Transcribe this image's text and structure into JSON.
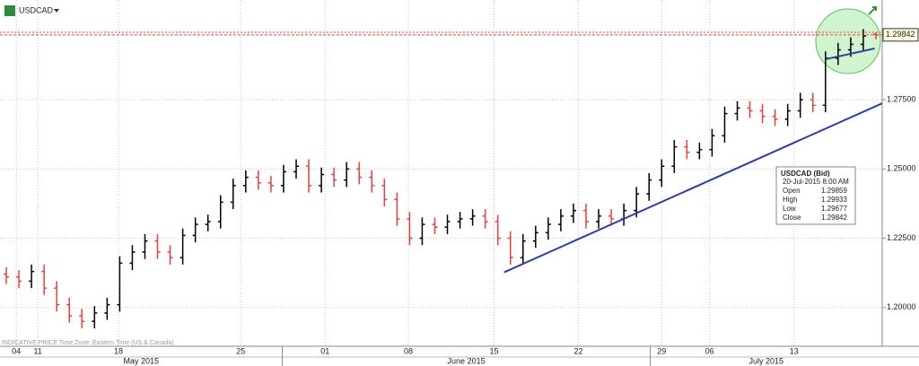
{
  "chart_data": {
    "type": "ohlc",
    "title": "USDCAD",
    "footer": "INDICATIVE PRICE   Time Zone: Eastern Time (US & Canada)",
    "up_color": "#000000",
    "down_color": "#e8413c",
    "trend_color": "#2e3f9e",
    "grid": true,
    "ylim": [
      1.186,
      1.311
    ],
    "yticks": [
      {
        "value": 1.2,
        "label": "1.20000"
      },
      {
        "value": 1.225,
        "label": "1.22500"
      },
      {
        "value": 1.25,
        "label": "1.25000"
      },
      {
        "value": 1.275,
        "label": "1.27500"
      }
    ],
    "xlim": [
      0,
      70
    ],
    "xticks": [
      {
        "value": 1.3,
        "label": "04"
      },
      {
        "value": 3.0,
        "label": "11"
      },
      {
        "value": 9.4,
        "label": "18"
      },
      {
        "value": 19.1,
        "label": "25"
      },
      {
        "value": 25.8,
        "label": "01"
      },
      {
        "value": 32.4,
        "label": "08"
      },
      {
        "value": 39.2,
        "label": "15"
      },
      {
        "value": 45.9,
        "label": "22"
      },
      {
        "value": 52.5,
        "label": "29"
      },
      {
        "value": 56.3,
        "label": "06"
      },
      {
        "value": 63.0,
        "label": "13"
      }
    ],
    "months": [
      {
        "label": "May 2015",
        "start": 0,
        "end": 22.4
      },
      {
        "label": "June 2015",
        "start": 22.4,
        "end": 51.6
      },
      {
        "label": "July 2015",
        "start": 51.6,
        "end": 70
      }
    ],
    "open": [
      1.212,
      1.211,
      1.2095,
      1.213,
      1.207,
      1.201,
      1.197,
      1.195,
      1.198,
      1.201,
      1.216,
      1.22,
      1.224,
      1.22,
      1.218,
      1.226,
      1.23,
      1.231,
      1.238,
      1.244,
      1.247,
      1.245,
      1.244,
      1.249,
      1.251,
      1.244,
      1.248,
      1.246,
      1.25,
      1.247,
      1.244,
      1.239,
      1.232,
      1.225,
      1.23,
      1.229,
      1.231,
      1.232,
      1.233,
      1.231,
      1.225,
      1.218,
      1.224,
      1.227,
      1.23,
      1.233,
      1.235,
      1.231,
      1.233,
      1.232,
      1.235,
      1.241,
      1.246,
      1.251,
      1.258,
      1.256,
      1.257,
      1.262,
      1.27,
      1.272,
      1.271,
      1.269,
      1.268,
      1.271,
      1.275,
      1.273,
      1.29,
      1.293,
      1.295,
      1.29859
    ],
    "high": [
      1.2145,
      1.2135,
      1.2155,
      1.2155,
      1.2095,
      1.2035,
      1.1995,
      1.2005,
      1.2035,
      1.2185,
      1.2225,
      1.2265,
      1.2265,
      1.2225,
      1.2285,
      1.2325,
      1.2335,
      1.2405,
      1.2465,
      1.2495,
      1.2495,
      1.2475,
      1.2515,
      1.2535,
      1.2535,
      1.2505,
      1.2505,
      1.2525,
      1.2525,
      1.2495,
      1.2465,
      1.2415,
      1.2345,
      1.2325,
      1.2325,
      1.2335,
      1.2345,
      1.2355,
      1.2355,
      1.2335,
      1.2275,
      1.2265,
      1.2295,
      1.2325,
      1.2355,
      1.2375,
      1.2375,
      1.2355,
      1.2355,
      1.2375,
      1.2435,
      1.2485,
      1.2535,
      1.2605,
      1.2605,
      1.2595,
      1.2645,
      1.2725,
      1.2745,
      1.2745,
      1.2735,
      1.2715,
      1.2735,
      1.2775,
      1.2775,
      1.2925,
      1.2955,
      1.2975,
      1.3005,
      1.29933
    ],
    "low": [
      1.2085,
      1.207,
      1.207,
      1.2045,
      1.1985,
      1.1945,
      1.1925,
      1.1925,
      1.1955,
      1.1985,
      1.2135,
      1.2175,
      1.2175,
      1.2155,
      1.2155,
      1.2235,
      1.2275,
      1.2285,
      1.2355,
      1.2415,
      1.2425,
      1.2415,
      1.2415,
      1.2465,
      1.2415,
      1.2415,
      1.2435,
      1.2435,
      1.2445,
      1.2415,
      1.2365,
      1.2295,
      1.2225,
      1.2225,
      1.2265,
      1.2265,
      1.2285,
      1.2295,
      1.2285,
      1.2225,
      1.2155,
      1.2155,
      1.2215,
      1.2245,
      1.2275,
      1.2305,
      1.2285,
      1.2285,
      1.2295,
      1.2295,
      1.2325,
      1.2385,
      1.2435,
      1.2485,
      1.2535,
      1.2535,
      1.2545,
      1.2595,
      1.2675,
      1.2685,
      1.2665,
      1.2655,
      1.2655,
      1.2685,
      1.2705,
      1.2705,
      1.2875,
      1.2905,
      1.2925,
      1.29677
    ],
    "close": [
      1.211,
      1.2095,
      1.213,
      1.207,
      1.201,
      1.197,
      1.195,
      1.198,
      1.201,
      1.216,
      1.22,
      1.224,
      1.22,
      1.218,
      1.226,
      1.23,
      1.231,
      1.238,
      1.244,
      1.247,
      1.245,
      1.244,
      1.249,
      1.251,
      1.244,
      1.248,
      1.246,
      1.25,
      1.247,
      1.244,
      1.239,
      1.232,
      1.225,
      1.23,
      1.229,
      1.231,
      1.232,
      1.233,
      1.231,
      1.225,
      1.218,
      1.224,
      1.227,
      1.23,
      1.233,
      1.235,
      1.231,
      1.233,
      1.232,
      1.235,
      1.241,
      1.246,
      1.251,
      1.258,
      1.256,
      1.257,
      1.262,
      1.27,
      1.272,
      1.271,
      1.269,
      1.268,
      1.271,
      1.275,
      1.273,
      1.29,
      1.293,
      1.295,
      1.298,
      1.29842
    ],
    "trendlines": [
      {
        "x": [
          40.0,
          70.0
        ],
        "y": [
          1.2127,
          1.2737
        ]
      },
      {
        "x": [
          65.5,
          69.4
        ],
        "y": [
          1.2896,
          1.2935
        ]
      }
    ],
    "last_price": 1.29842,
    "info": {
      "title": "USDCAD (Bid)",
      "time": "20-Jul-2015 8:00 AM",
      "rows": [
        {
          "label": "Open",
          "value": 1.29859
        },
        {
          "label": "High",
          "value": 1.29933
        },
        {
          "label": "Low",
          "value": 1.29677
        },
        {
          "label": "Close",
          "value": 1.29842
        }
      ]
    }
  }
}
